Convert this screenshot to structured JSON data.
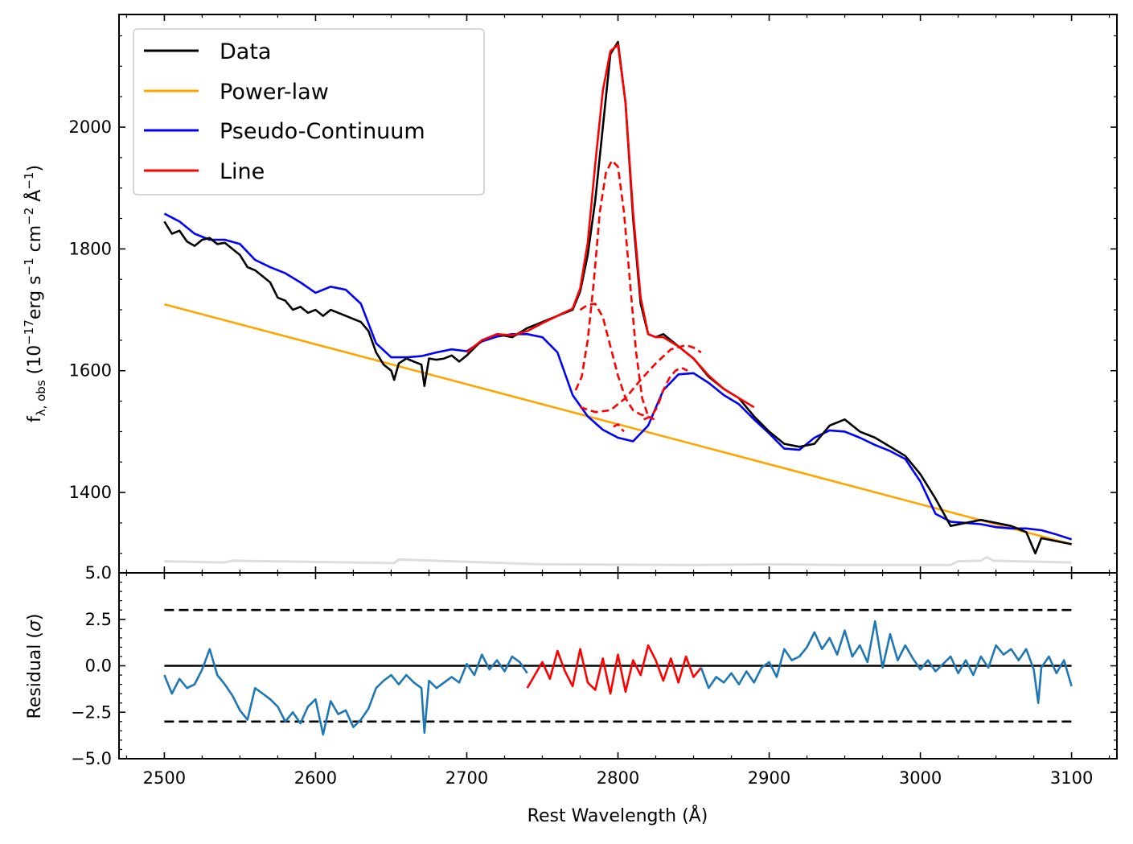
{
  "chart_data": [
    {
      "type": "line",
      "panel": "spectrum",
      "xlim": [
        2470,
        3130
      ],
      "ylim": [
        1268,
        2185
      ],
      "ylabel": "f_{λ,obs} (10^{-17}erg s^{-1} cm^{-2} Å^{-1})",
      "ylabel_parts": {
        "f": "f",
        "sub": "λ, obs",
        "pre": " (10",
        "exp1": "−17",
        "mid1": "erg s",
        "exp2": "−1",
        "mid2": " cm",
        "exp3": "−2",
        "mid3": " Å",
        "exp4": "−1",
        "post": ")"
      },
      "yticks": [
        1400,
        1600,
        1800,
        2000
      ],
      "ytick_labels": [
        "1400",
        "1600",
        "1800",
        "2000"
      ],
      "legend": {
        "placement": "top-left",
        "entries": [
          {
            "label": "Data",
            "color": "#000000"
          },
          {
            "label": "Power-law",
            "color": "#ffa500"
          },
          {
            "label": "Pseudo-Continuum",
            "color": "#0000ff"
          },
          {
            "label": "Line",
            "color": "#ff0000"
          }
        ]
      },
      "series": [
        {
          "name": "Data",
          "color": "#000000",
          "x": [
            2500,
            2505,
            2510,
            2515,
            2520,
            2525,
            2530,
            2535,
            2540,
            2545,
            2550,
            2555,
            2560,
            2565,
            2570,
            2575,
            2580,
            2585,
            2590,
            2595,
            2600,
            2605,
            2610,
            2615,
            2620,
            2625,
            2630,
            2635,
            2640,
            2645,
            2650,
            2652,
            2655,
            2660,
            2665,
            2670,
            2672,
            2675,
            2680,
            2685,
            2690,
            2695,
            2700,
            2710,
            2720,
            2730,
            2740,
            2750,
            2760,
            2770,
            2775,
            2780,
            2785,
            2790,
            2795,
            2800,
            2805,
            2810,
            2815,
            2820,
            2825,
            2830,
            2840,
            2850,
            2860,
            2870,
            2880,
            2890,
            2900,
            2910,
            2920,
            2930,
            2940,
            2950,
            2960,
            2970,
            2980,
            2990,
            3000,
            3010,
            3020,
            3030,
            3040,
            3050,
            3060,
            3070,
            3076,
            3080,
            3090,
            3100
          ],
          "y": [
            1845,
            1825,
            1830,
            1812,
            1805,
            1815,
            1818,
            1808,
            1810,
            1800,
            1790,
            1770,
            1765,
            1755,
            1745,
            1720,
            1715,
            1700,
            1705,
            1695,
            1700,
            1690,
            1700,
            1695,
            1690,
            1685,
            1680,
            1665,
            1630,
            1610,
            1600,
            1585,
            1612,
            1620,
            1615,
            1610,
            1575,
            1620,
            1618,
            1620,
            1625,
            1615,
            1625,
            1650,
            1660,
            1655,
            1670,
            1680,
            1690,
            1700,
            1730,
            1790,
            1880,
            2000,
            2120,
            2140,
            2040,
            1850,
            1710,
            1660,
            1655,
            1660,
            1640,
            1620,
            1590,
            1570,
            1555,
            1525,
            1500,
            1480,
            1475,
            1480,
            1510,
            1520,
            1500,
            1490,
            1475,
            1460,
            1430,
            1390,
            1345,
            1350,
            1355,
            1350,
            1345,
            1335,
            1300,
            1325,
            1320,
            1315
          ]
        },
        {
          "name": "Power-law",
          "color": "#ffa500",
          "x": [
            2500,
            3100
          ],
          "y": [
            1709,
            1315
          ]
        },
        {
          "name": "Pseudo-Continuum",
          "color": "#0000ff",
          "x": [
            2500,
            2510,
            2520,
            2530,
            2540,
            2550,
            2560,
            2570,
            2580,
            2590,
            2600,
            2610,
            2620,
            2630,
            2640,
            2650,
            2660,
            2670,
            2680,
            2690,
            2700,
            2710,
            2720,
            2730,
            2740,
            2750,
            2760,
            2770,
            2780,
            2790,
            2800,
            2810,
            2820,
            2830,
            2840,
            2850,
            2860,
            2870,
            2880,
            2890,
            2900,
            2910,
            2920,
            2930,
            2940,
            2950,
            2960,
            2970,
            2980,
            2990,
            3000,
            3010,
            3020,
            3030,
            3040,
            3050,
            3060,
            3070,
            3080,
            3090,
            3100
          ],
          "y": [
            1858,
            1845,
            1825,
            1815,
            1815,
            1808,
            1782,
            1770,
            1760,
            1745,
            1728,
            1738,
            1733,
            1710,
            1645,
            1622,
            1622,
            1624,
            1630,
            1635,
            1632,
            1648,
            1656,
            1660,
            1660,
            1655,
            1630,
            1560,
            1525,
            1503,
            1490,
            1484,
            1510,
            1568,
            1594,
            1596,
            1580,
            1560,
            1545,
            1520,
            1497,
            1472,
            1470,
            1490,
            1502,
            1500,
            1490,
            1478,
            1468,
            1455,
            1418,
            1365,
            1352,
            1350,
            1348,
            1343,
            1341,
            1341,
            1338,
            1331,
            1323
          ]
        },
        {
          "name": "Line",
          "color": "#ff0000",
          "x": [
            2700,
            2710,
            2720,
            2730,
            2740,
            2750,
            2760,
            2770,
            2775,
            2780,
            2785,
            2790,
            2795,
            2800,
            2805,
            2810,
            2815,
            2820,
            2825,
            2830,
            2840,
            2850,
            2860,
            2870,
            2880,
            2890
          ],
          "y": [
            1630,
            1650,
            1660,
            1658,
            1665,
            1678,
            1690,
            1702,
            1735,
            1810,
            1940,
            2060,
            2125,
            2135,
            2040,
            1860,
            1720,
            1660,
            1655,
            1655,
            1640,
            1620,
            1592,
            1570,
            1555,
            1540
          ]
        },
        {
          "name": "Line component 1",
          "color": "#ff0000",
          "dashed": true,
          "x": [
            2772,
            2776,
            2780,
            2784,
            2788,
            2792,
            2796,
            2800,
            2804,
            2808,
            2812,
            2816,
            2820,
            2824
          ],
          "y": [
            1568,
            1590,
            1650,
            1745,
            1860,
            1925,
            1945,
            1935,
            1860,
            1745,
            1630,
            1555,
            1525,
            1520
          ]
        },
        {
          "name": "Line component 2",
          "color": "#ff0000",
          "dashed": true,
          "x": [
            2775,
            2780,
            2785,
            2790,
            2795,
            2800,
            2805,
            2810,
            2815,
            2820
          ],
          "y": [
            1700,
            1708,
            1710,
            1688,
            1640,
            1592,
            1555,
            1535,
            1528,
            1525
          ]
        },
        {
          "name": "Line component 3",
          "color": "#ff0000",
          "dashed": true,
          "x": [
            2775,
            2785,
            2795,
            2805,
            2815,
            2825,
            2835,
            2845,
            2850,
            2855
          ],
          "y": [
            1540,
            1532,
            1535,
            1555,
            1585,
            1612,
            1635,
            1642,
            1638,
            1630
          ]
        },
        {
          "name": "Line component 4",
          "color": "#ff0000",
          "dashed": true,
          "x": [
            2797,
            2800,
            2802,
            2804
          ],
          "y": [
            1508,
            1512,
            1505,
            1500
          ]
        },
        {
          "name": "Line component 5",
          "color": "#ff0000",
          "dashed": true,
          "x": [
            2817,
            2822,
            2826,
            2830,
            2834,
            2838,
            2842,
            2846
          ],
          "y": [
            1520,
            1525,
            1540,
            1568,
            1588,
            1600,
            1605,
            1600
          ]
        },
        {
          "name": "Error",
          "color": "#dddddd",
          "x": [
            2500,
            2540,
            2545,
            2652,
            2655,
            2750,
            2760,
            2850,
            2900,
            2950,
            3020,
            3025,
            3040,
            3044,
            3048,
            3100
          ],
          "y": [
            1287,
            1285,
            1288,
            1284,
            1290,
            1282,
            1282,
            1281,
            1282,
            1281,
            1281,
            1287,
            1288,
            1294,
            1288,
            1285
          ]
        }
      ]
    },
    {
      "type": "line",
      "panel": "residual",
      "xlim": [
        2470,
        3130
      ],
      "ylim": [
        -5.0,
        5.0
      ],
      "xlabel": "Rest Wavelength (Å)",
      "ylabel": "Residual (σ)",
      "ylabel_parts": {
        "pre": "Residual (",
        "sym": "σ",
        "post": ")"
      },
      "xticks": [
        2500,
        2600,
        2700,
        2800,
        2900,
        3000,
        3100
      ],
      "xtick_labels": [
        "2500",
        "2600",
        "2700",
        "2800",
        "2900",
        "3000",
        "3100"
      ],
      "yticks": [
        -5.0,
        -2.5,
        0.0,
        2.5,
        5.0
      ],
      "ytick_labels": [
        "−5.0",
        "−2.5",
        "0.0",
        "2.5",
        "5.0"
      ],
      "reference_lines": [
        {
          "y": 0.0,
          "style": "solid",
          "color": "#000000"
        },
        {
          "y": 3.0,
          "style": "dashed",
          "color": "#000000"
        },
        {
          "y": -3.0,
          "style": "dashed",
          "color": "#000000"
        }
      ],
      "series": [
        {
          "name": "Residual",
          "color": "#1f77b4",
          "x": [
            2500,
            2505,
            2510,
            2515,
            2520,
            2525,
            2530,
            2535,
            2540,
            2545,
            2550,
            2555,
            2560,
            2565,
            2570,
            2575,
            2580,
            2585,
            2590,
            2595,
            2600,
            2605,
            2610,
            2615,
            2620,
            2625,
            2630,
            2635,
            2640,
            2645,
            2650,
            2655,
            2660,
            2665,
            2670,
            2672,
            2675,
            2680,
            2685,
            2690,
            2695,
            2700,
            2705,
            2710,
            2715,
            2720,
            2725,
            2730,
            2735,
            2740
          ],
          "y": [
            -0.5,
            -1.5,
            -0.7,
            -1.2,
            -1.0,
            -0.2,
            0.9,
            -0.5,
            -1.0,
            -1.6,
            -2.4,
            -2.9,
            -1.2,
            -1.5,
            -1.8,
            -2.2,
            -3.0,
            -2.5,
            -3.1,
            -2.2,
            -1.8,
            -3.7,
            -1.9,
            -2.6,
            -2.4,
            -3.3,
            -2.9,
            -2.3,
            -1.2,
            -0.8,
            -0.5,
            -1.0,
            -0.5,
            -0.9,
            -1.2,
            -3.6,
            -0.8,
            -1.2,
            -0.9,
            -0.6,
            -0.9,
            0.1,
            -0.5,
            0.6,
            -0.2,
            0.3,
            -0.3,
            0.5,
            0.2,
            -0.4
          ]
        },
        {
          "name": "Residual (line region)",
          "color": "#ff0000",
          "x": [
            2740,
            2745,
            2750,
            2755,
            2760,
            2765,
            2770,
            2775,
            2780,
            2785,
            2790,
            2795,
            2800,
            2805,
            2810,
            2815,
            2820,
            2825,
            2830,
            2835,
            2840,
            2845,
            2850,
            2855
          ],
          "y": [
            -1.2,
            -0.5,
            0.2,
            -0.7,
            0.8,
            -0.3,
            -1.1,
            0.9,
            -0.9,
            -1.3,
            0.4,
            -1.5,
            0.6,
            -1.4,
            0.3,
            -0.5,
            1.1,
            0.3,
            -0.8,
            0.4,
            -0.9,
            0.5,
            -0.6,
            -0.1
          ]
        },
        {
          "name": "Residual (continuum)",
          "color": "#1f77b4",
          "x": [
            2855,
            2860,
            2865,
            2870,
            2875,
            2880,
            2885,
            2890,
            2895,
            2900,
            2905,
            2910,
            2915,
            2920,
            2925,
            2930,
            2935,
            2940,
            2945,
            2950,
            2955,
            2960,
            2965,
            2970,
            2975,
            2980,
            2985,
            2990,
            2995,
            3000,
            3005,
            3010,
            3015,
            3020,
            3025,
            3030,
            3035,
            3040,
            3045,
            3050,
            3055,
            3060,
            3065,
            3070,
            3075,
            3078,
            3080,
            3085,
            3090,
            3095,
            3100
          ],
          "y": [
            -0.1,
            -1.2,
            -0.6,
            -0.9,
            -0.4,
            -1.0,
            -0.3,
            -0.9,
            -0.1,
            0.2,
            -0.6,
            0.9,
            0.3,
            0.5,
            1.0,
            1.8,
            0.9,
            1.5,
            0.6,
            1.9,
            0.5,
            1.1,
            0.2,
            2.4,
            -0.1,
            1.7,
            0.3,
            1.1,
            0.4,
            -0.2,
            0.3,
            -0.3,
            0.1,
            0.5,
            -0.4,
            0.3,
            -0.5,
            0.5,
            -0.1,
            1.1,
            0.6,
            0.9,
            0.3,
            0.9,
            -0.2,
            -2.0,
            -0.1,
            0.5,
            -0.4,
            0.3,
            -1.1
          ]
        }
      ]
    }
  ]
}
